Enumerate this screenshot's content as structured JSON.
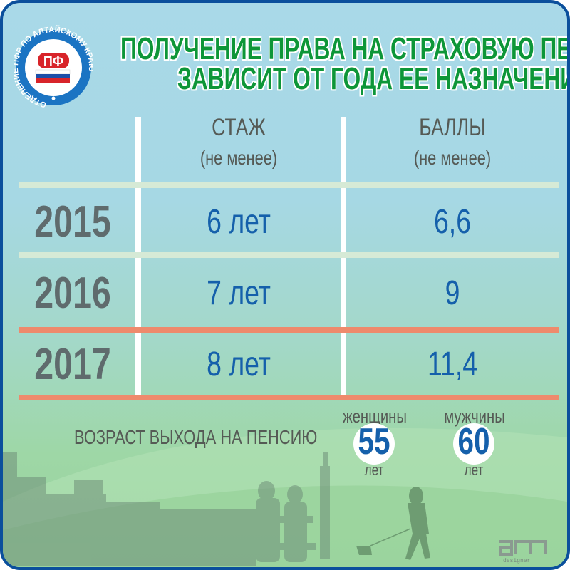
{
  "logo": {
    "ring_text": "ОТДЕЛЕНИЕ ПФР ПО АЛТАЙСКОМУ КРАЮ",
    "emblem_text": "ПФ"
  },
  "title": {
    "line1": "ПОЛУЧЕНИЕ ПРАВА НА СТРАХОВУЮ ПЕНСИЮ",
    "line2": "ЗАВИСИТ ОТ ГОДА ЕЕ НАЗНАЧЕНИЯ"
  },
  "table": {
    "columns": [
      {
        "label": "СТАЖ",
        "sublabel": "(не менее)"
      },
      {
        "label": "БАЛЛЫ",
        "sublabel": "(не менее)"
      }
    ],
    "rows": [
      {
        "year": "2015",
        "stazh": "6 лет",
        "bally": "6,6"
      },
      {
        "year": "2016",
        "stazh": "7 лет",
        "bally": "9"
      },
      {
        "year": "2017",
        "stazh": "8 лет",
        "bally": "11,4"
      }
    ]
  },
  "retirement": {
    "label": "ВОЗРАСТ ВЫХОДА НА ПЕНСИЮ",
    "women": {
      "label": "женщины",
      "age": "55",
      "unit": "лет"
    },
    "men": {
      "label": "мужчины",
      "age": "60",
      "unit": "лет"
    }
  },
  "signature": {
    "logo_text": "am",
    "caption": "designer"
  },
  "colors": {
    "border": "#0b4f9c",
    "title": "#0d9638",
    "values": "#1560ab",
    "divider_green": "#d6ead6",
    "divider_salmon": "#ee8a6c"
  }
}
